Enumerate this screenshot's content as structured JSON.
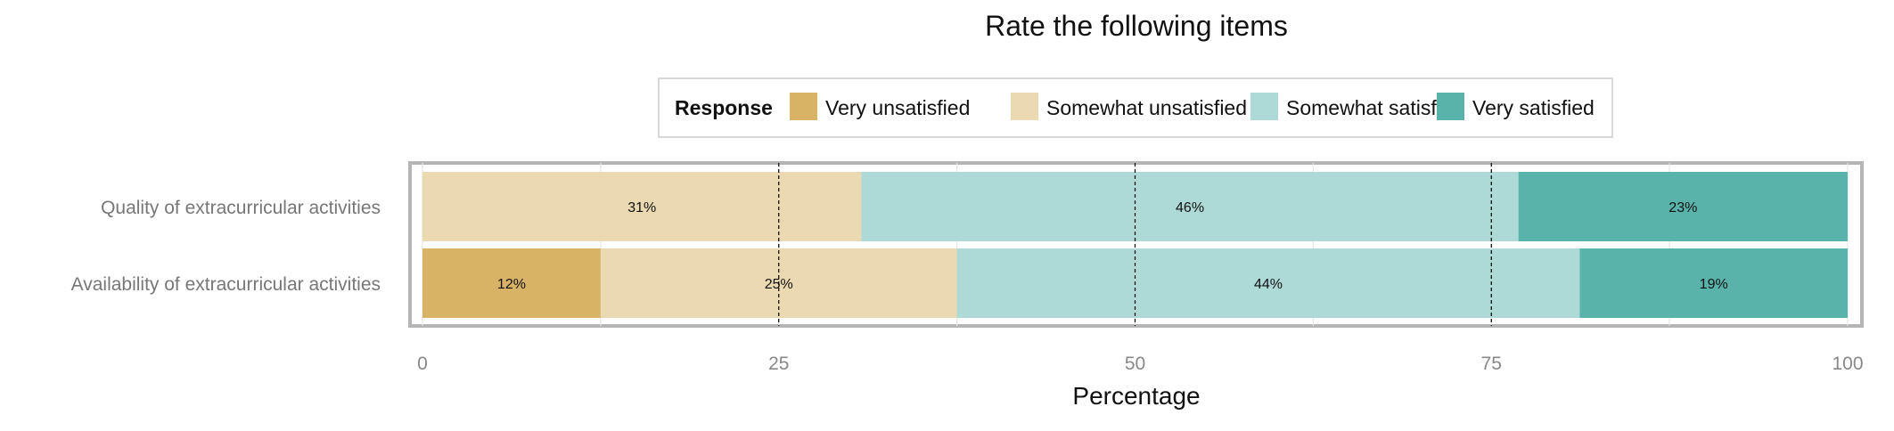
{
  "chart_data": {
    "type": "bar",
    "orientation": "horizontal",
    "stacked": true,
    "title": "Rate the following items",
    "xlabel": "Percentage",
    "ylabel": "",
    "xlim": [
      0,
      100
    ],
    "xticks": [
      "0",
      "25",
      "50",
      "75",
      "100"
    ],
    "grid": true,
    "reference_lines": [
      25,
      50,
      75
    ],
    "legend": {
      "title": "Response",
      "placement": "top"
    },
    "categories": [
      "Quality of extracurricular activities",
      "Availability of extracurricular activities"
    ],
    "series": [
      {
        "name": "Very unsatisfied",
        "color": "#d9b365",
        "values": [
          0,
          12.5
        ],
        "labels": [
          "",
          "12%"
        ]
      },
      {
        "name": "Somewhat unsatisfied",
        "color": "#ead9b1",
        "values": [
          30.8,
          25.0
        ],
        "labels": [
          "31%",
          "25%"
        ]
      },
      {
        "name": "Somewhat satisfied",
        "color": "#add9d6",
        "values": [
          46.1,
          43.7
        ],
        "labels": [
          "46%",
          "44%"
        ]
      },
      {
        "name": "Very satisfied",
        "color": "#5ab3ab",
        "values": [
          23.1,
          18.8
        ],
        "labels": [
          "23%",
          "19%"
        ]
      }
    ]
  }
}
